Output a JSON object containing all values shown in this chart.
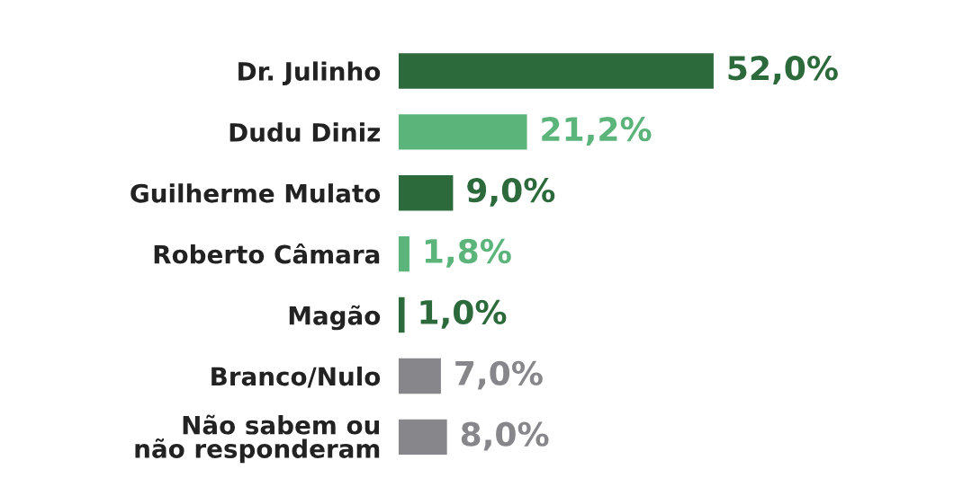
{
  "chart_data": {
    "type": "bar",
    "orientation": "horizontal",
    "categories": [
      "Dr. Julinho",
      "Dudu Diniz",
      "Guilherme Mulato",
      "Roberto Câmara",
      "Magão",
      "Branco/Nulo",
      "Não sabem ou\nnão responderam"
    ],
    "values": [
      52.0,
      21.2,
      9.0,
      1.8,
      1.0,
      7.0,
      8.0
    ],
    "colors": [
      "#2c6a3c",
      "#5bb57a",
      "#2c6a3c",
      "#5bb57a",
      "#2c6a3c",
      "#87878b",
      "#87878b"
    ],
    "value_labels": [
      "52,0%",
      "21,2%",
      "9,0%",
      "1,8%",
      "1,0%",
      "7,0%",
      "8,0%"
    ],
    "grid": false,
    "legend": false
  }
}
